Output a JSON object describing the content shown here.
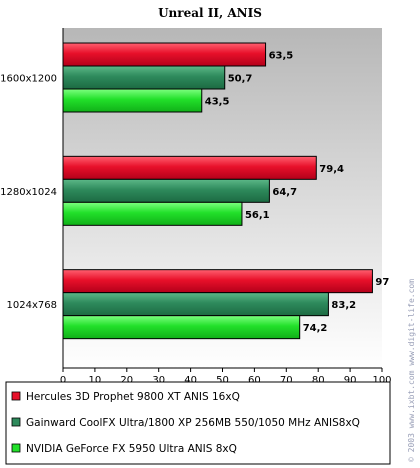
{
  "chart_data": {
    "type": "bar",
    "orientation": "horizontal",
    "title": "Unreal II, ANIS",
    "categories": [
      "1600x1200",
      "1280x1024",
      "1024x768"
    ],
    "series": [
      {
        "name": "Hercules 3D Prophet 9800 XT ANIS 16xQ",
        "color": "#e8102a",
        "values": [
          63.5,
          79.4,
          97
        ]
      },
      {
        "name": "Gainward CoolFX Ultra/1800 XP 256MB 550/1050 MHz ANIS8xQ",
        "color": "#2e8a5c",
        "values": [
          50.7,
          64.7,
          83.2
        ]
      },
      {
        "name": "NVIDIA GeForce FX 5950 Ultra ANIS 8xQ",
        "color": "#22e02a",
        "values": [
          43.5,
          56.1,
          74.2
        ]
      }
    ],
    "value_labels": [
      [
        "63,5",
        "79,4",
        "97"
      ],
      [
        "50,7",
        "64,7",
        "83,2"
      ],
      [
        "43,5",
        "56,1",
        "74,2"
      ]
    ],
    "xlim": [
      0,
      100
    ],
    "ticks": [
      "0",
      "10",
      "20",
      "30",
      "40",
      "50",
      "60",
      "70",
      "80",
      "90",
      "100"
    ],
    "grid": false,
    "legend_position": "bottom"
  },
  "watermark": "© 2003 www.ixbt.com  www.digit-life.com"
}
